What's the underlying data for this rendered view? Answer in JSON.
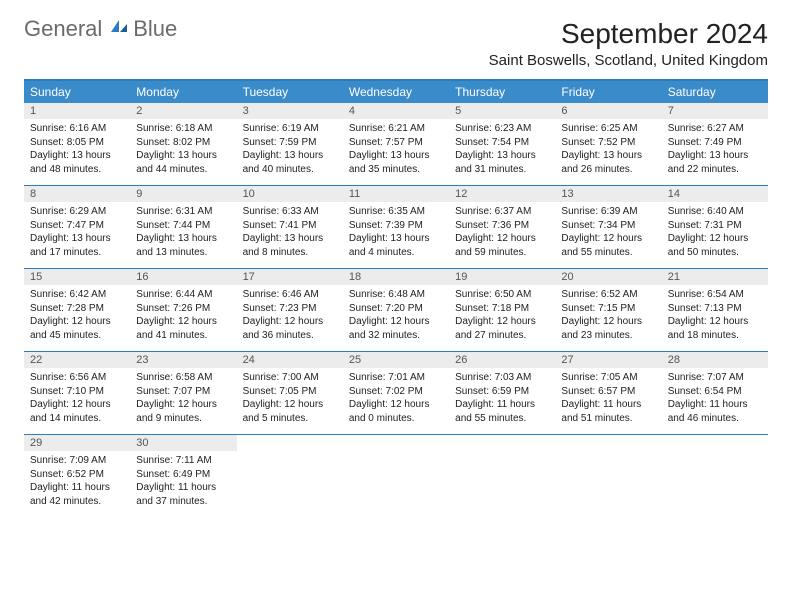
{
  "logo": {
    "text1": "General",
    "text2": "Blue"
  },
  "header": {
    "month_title": "September 2024",
    "location": "Saint Boswells, Scotland, United Kingdom"
  },
  "colors": {
    "header_bg": "#3a8bc9",
    "header_border": "#2a7bbf",
    "daynum_bg": "#ececec",
    "text": "#222222"
  },
  "typography": {
    "title_fontsize": 28,
    "location_fontsize": 15,
    "dayheader_fontsize": 12,
    "body_fontsize": 10
  },
  "day_names": [
    "Sunday",
    "Monday",
    "Tuesday",
    "Wednesday",
    "Thursday",
    "Friday",
    "Saturday"
  ],
  "weeks": [
    [
      {
        "n": "1",
        "sunrise": "Sunrise: 6:16 AM",
        "sunset": "Sunset: 8:05 PM",
        "daylight1": "Daylight: 13 hours",
        "daylight2": "and 48 minutes."
      },
      {
        "n": "2",
        "sunrise": "Sunrise: 6:18 AM",
        "sunset": "Sunset: 8:02 PM",
        "daylight1": "Daylight: 13 hours",
        "daylight2": "and 44 minutes."
      },
      {
        "n": "3",
        "sunrise": "Sunrise: 6:19 AM",
        "sunset": "Sunset: 7:59 PM",
        "daylight1": "Daylight: 13 hours",
        "daylight2": "and 40 minutes."
      },
      {
        "n": "4",
        "sunrise": "Sunrise: 6:21 AM",
        "sunset": "Sunset: 7:57 PM",
        "daylight1": "Daylight: 13 hours",
        "daylight2": "and 35 minutes."
      },
      {
        "n": "5",
        "sunrise": "Sunrise: 6:23 AM",
        "sunset": "Sunset: 7:54 PM",
        "daylight1": "Daylight: 13 hours",
        "daylight2": "and 31 minutes."
      },
      {
        "n": "6",
        "sunrise": "Sunrise: 6:25 AM",
        "sunset": "Sunset: 7:52 PM",
        "daylight1": "Daylight: 13 hours",
        "daylight2": "and 26 minutes."
      },
      {
        "n": "7",
        "sunrise": "Sunrise: 6:27 AM",
        "sunset": "Sunset: 7:49 PM",
        "daylight1": "Daylight: 13 hours",
        "daylight2": "and 22 minutes."
      }
    ],
    [
      {
        "n": "8",
        "sunrise": "Sunrise: 6:29 AM",
        "sunset": "Sunset: 7:47 PM",
        "daylight1": "Daylight: 13 hours",
        "daylight2": "and 17 minutes."
      },
      {
        "n": "9",
        "sunrise": "Sunrise: 6:31 AM",
        "sunset": "Sunset: 7:44 PM",
        "daylight1": "Daylight: 13 hours",
        "daylight2": "and 13 minutes."
      },
      {
        "n": "10",
        "sunrise": "Sunrise: 6:33 AM",
        "sunset": "Sunset: 7:41 PM",
        "daylight1": "Daylight: 13 hours",
        "daylight2": "and 8 minutes."
      },
      {
        "n": "11",
        "sunrise": "Sunrise: 6:35 AM",
        "sunset": "Sunset: 7:39 PM",
        "daylight1": "Daylight: 13 hours",
        "daylight2": "and 4 minutes."
      },
      {
        "n": "12",
        "sunrise": "Sunrise: 6:37 AM",
        "sunset": "Sunset: 7:36 PM",
        "daylight1": "Daylight: 12 hours",
        "daylight2": "and 59 minutes."
      },
      {
        "n": "13",
        "sunrise": "Sunrise: 6:39 AM",
        "sunset": "Sunset: 7:34 PM",
        "daylight1": "Daylight: 12 hours",
        "daylight2": "and 55 minutes."
      },
      {
        "n": "14",
        "sunrise": "Sunrise: 6:40 AM",
        "sunset": "Sunset: 7:31 PM",
        "daylight1": "Daylight: 12 hours",
        "daylight2": "and 50 minutes."
      }
    ],
    [
      {
        "n": "15",
        "sunrise": "Sunrise: 6:42 AM",
        "sunset": "Sunset: 7:28 PM",
        "daylight1": "Daylight: 12 hours",
        "daylight2": "and 45 minutes."
      },
      {
        "n": "16",
        "sunrise": "Sunrise: 6:44 AM",
        "sunset": "Sunset: 7:26 PM",
        "daylight1": "Daylight: 12 hours",
        "daylight2": "and 41 minutes."
      },
      {
        "n": "17",
        "sunrise": "Sunrise: 6:46 AM",
        "sunset": "Sunset: 7:23 PM",
        "daylight1": "Daylight: 12 hours",
        "daylight2": "and 36 minutes."
      },
      {
        "n": "18",
        "sunrise": "Sunrise: 6:48 AM",
        "sunset": "Sunset: 7:20 PM",
        "daylight1": "Daylight: 12 hours",
        "daylight2": "and 32 minutes."
      },
      {
        "n": "19",
        "sunrise": "Sunrise: 6:50 AM",
        "sunset": "Sunset: 7:18 PM",
        "daylight1": "Daylight: 12 hours",
        "daylight2": "and 27 minutes."
      },
      {
        "n": "20",
        "sunrise": "Sunrise: 6:52 AM",
        "sunset": "Sunset: 7:15 PM",
        "daylight1": "Daylight: 12 hours",
        "daylight2": "and 23 minutes."
      },
      {
        "n": "21",
        "sunrise": "Sunrise: 6:54 AM",
        "sunset": "Sunset: 7:13 PM",
        "daylight1": "Daylight: 12 hours",
        "daylight2": "and 18 minutes."
      }
    ],
    [
      {
        "n": "22",
        "sunrise": "Sunrise: 6:56 AM",
        "sunset": "Sunset: 7:10 PM",
        "daylight1": "Daylight: 12 hours",
        "daylight2": "and 14 minutes."
      },
      {
        "n": "23",
        "sunrise": "Sunrise: 6:58 AM",
        "sunset": "Sunset: 7:07 PM",
        "daylight1": "Daylight: 12 hours",
        "daylight2": "and 9 minutes."
      },
      {
        "n": "24",
        "sunrise": "Sunrise: 7:00 AM",
        "sunset": "Sunset: 7:05 PM",
        "daylight1": "Daylight: 12 hours",
        "daylight2": "and 5 minutes."
      },
      {
        "n": "25",
        "sunrise": "Sunrise: 7:01 AM",
        "sunset": "Sunset: 7:02 PM",
        "daylight1": "Daylight: 12 hours",
        "daylight2": "and 0 minutes."
      },
      {
        "n": "26",
        "sunrise": "Sunrise: 7:03 AM",
        "sunset": "Sunset: 6:59 PM",
        "daylight1": "Daylight: 11 hours",
        "daylight2": "and 55 minutes."
      },
      {
        "n": "27",
        "sunrise": "Sunrise: 7:05 AM",
        "sunset": "Sunset: 6:57 PM",
        "daylight1": "Daylight: 11 hours",
        "daylight2": "and 51 minutes."
      },
      {
        "n": "28",
        "sunrise": "Sunrise: 7:07 AM",
        "sunset": "Sunset: 6:54 PM",
        "daylight1": "Daylight: 11 hours",
        "daylight2": "and 46 minutes."
      }
    ],
    [
      {
        "n": "29",
        "sunrise": "Sunrise: 7:09 AM",
        "sunset": "Sunset: 6:52 PM",
        "daylight1": "Daylight: 11 hours",
        "daylight2": "and 42 minutes."
      },
      {
        "n": "30",
        "sunrise": "Sunrise: 7:11 AM",
        "sunset": "Sunset: 6:49 PM",
        "daylight1": "Daylight: 11 hours",
        "daylight2": "and 37 minutes."
      },
      {
        "empty": true
      },
      {
        "empty": true
      },
      {
        "empty": true
      },
      {
        "empty": true
      },
      {
        "empty": true
      }
    ]
  ]
}
